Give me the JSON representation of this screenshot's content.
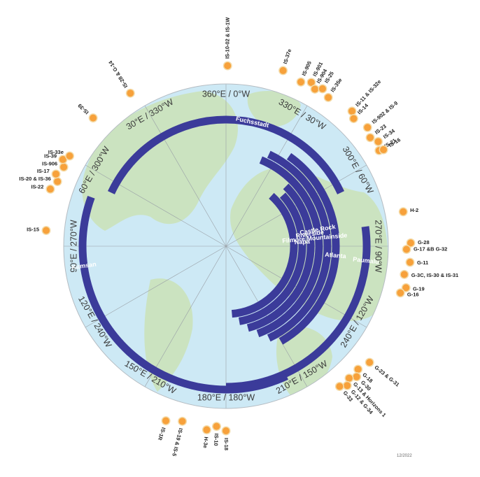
{
  "date_label": "12/2022",
  "colors": {
    "ocean": "#cde9f5",
    "land": "#cbe3c0",
    "arc": "#3b3b9a",
    "dot": "#f7a13b",
    "dot_ring": "#f4dcaa",
    "grid": "#9aa0a6"
  },
  "degree_labels": [
    {
      "text": "360°E / 0°W",
      "angle": 0
    },
    {
      "text": "330°E / 30°W",
      "angle": 30
    },
    {
      "text": "300°E / 60°W",
      "angle": 60
    },
    {
      "text": "270°E / 90°W",
      "angle": 90
    },
    {
      "text": "240°E / 120°W",
      "angle": 120
    },
    {
      "text": "210°E / 150°W",
      "angle": 150
    },
    {
      "text": "180°E / 180°W",
      "angle": 180
    },
    {
      "text": "150°E / 210°W",
      "angle": 210
    },
    {
      "text": "120°E / 240°W",
      "angle": 240
    },
    {
      "text": "90°E / 270°W",
      "angle": 270
    },
    {
      "text": "60°E / 300°W",
      "angle": 300
    },
    {
      "text": "30°E / 330°W",
      "angle": 330
    }
  ],
  "teleports": [
    {
      "name": "Fuchsstadt",
      "start": 295,
      "end": 65
    },
    {
      "name": "Atlanta",
      "start": 35,
      "end": 150
    },
    {
      "name": "Mountainside",
      "start": 25,
      "end": 155
    },
    {
      "name": "Castle Rock",
      "start": 22,
      "end": 160
    },
    {
      "name": "Riverside",
      "start": 45,
      "end": 165
    },
    {
      "name": "Napa",
      "start": 48,
      "end": 170
    },
    {
      "name": "Filmore",
      "start": 42,
      "end": 175
    },
    {
      "name": "Paumalu",
      "start": 82,
      "end": 180
    },
    {
      "name": "Kumsan",
      "start": 155,
      "end": 290
    }
  ],
  "satellites": [
    {
      "label": "IS-10-02 & IS-1W",
      "lon": 0.5
    },
    {
      "label": "IS-37e",
      "lon": 18
    },
    {
      "label": "IS-905",
      "lon": 24.5
    },
    {
      "label": "IS-901",
      "lon": 27.5
    },
    {
      "label": "IS-904",
      "lon": 29.5
    },
    {
      "label": "IS-25",
      "lon": 31.5
    },
    {
      "label": "IS-35e",
      "lon": 34.5
    },
    {
      "label": "IS-11 & IS-32e",
      "lon": 43
    },
    {
      "label": "IS-14",
      "lon": 45
    },
    {
      "label": "IS-902 & IS-9",
      "lon": 50
    },
    {
      "label": "IS-23",
      "lon": 53
    },
    {
      "label": "IS-34",
      "lon": 55.5
    },
    {
      "label": "IS-21",
      "lon": 58
    },
    {
      "label": "IS-16",
      "lon": 58.5
    },
    {
      "label": "H-2",
      "lon": 79
    },
    {
      "label": "G-28",
      "lon": 89
    },
    {
      "label": "G-17 &B G-32",
      "lon": 91
    },
    {
      "label": "G-11",
      "lon": 95
    },
    {
      "label": "G-3C, IS-30 & IS-31",
      "lon": 99
    },
    {
      "label": "G-19",
      "lon": 103
    },
    {
      "label": "G-16",
      "lon": 105
    },
    {
      "label": "G-23 & G-31",
      "lon": 129
    },
    {
      "label": "G-18",
      "lon": 133
    },
    {
      "label": "G-30",
      "lon": 135
    },
    {
      "label": "G-13 & Horizons 1",
      "lon": 137
    },
    {
      "label": "G-12 & G-34",
      "lon": 139
    },
    {
      "label": "G-33",
      "lon": 141
    },
    {
      "label": "IS-18",
      "lon": 180
    },
    {
      "label": "IS-10",
      "lon": 183
    },
    {
      "label": "H-3e",
      "lon": 186
    },
    {
      "label": "IS-19 & IS-5",
      "lon": 194
    },
    {
      "label": "IS-1R",
      "lon": 199
    },
    {
      "label": "IS-15",
      "lon": 275
    },
    {
      "label": "IS-22",
      "lon": 288
    },
    {
      "label": "IS-20 & IS-36",
      "lon": 291
    },
    {
      "label": "IS-17",
      "lon": 293
    },
    {
      "label": "IS-906",
      "lon": 296
    },
    {
      "label": "IS-39",
      "lon": 298
    },
    {
      "label": "IS-33e",
      "lon": 300
    },
    {
      "label": "IS-39",
      "lon": 314
    },
    {
      "label": "IS-28 & G-14",
      "lon": 328
    }
  ]
}
